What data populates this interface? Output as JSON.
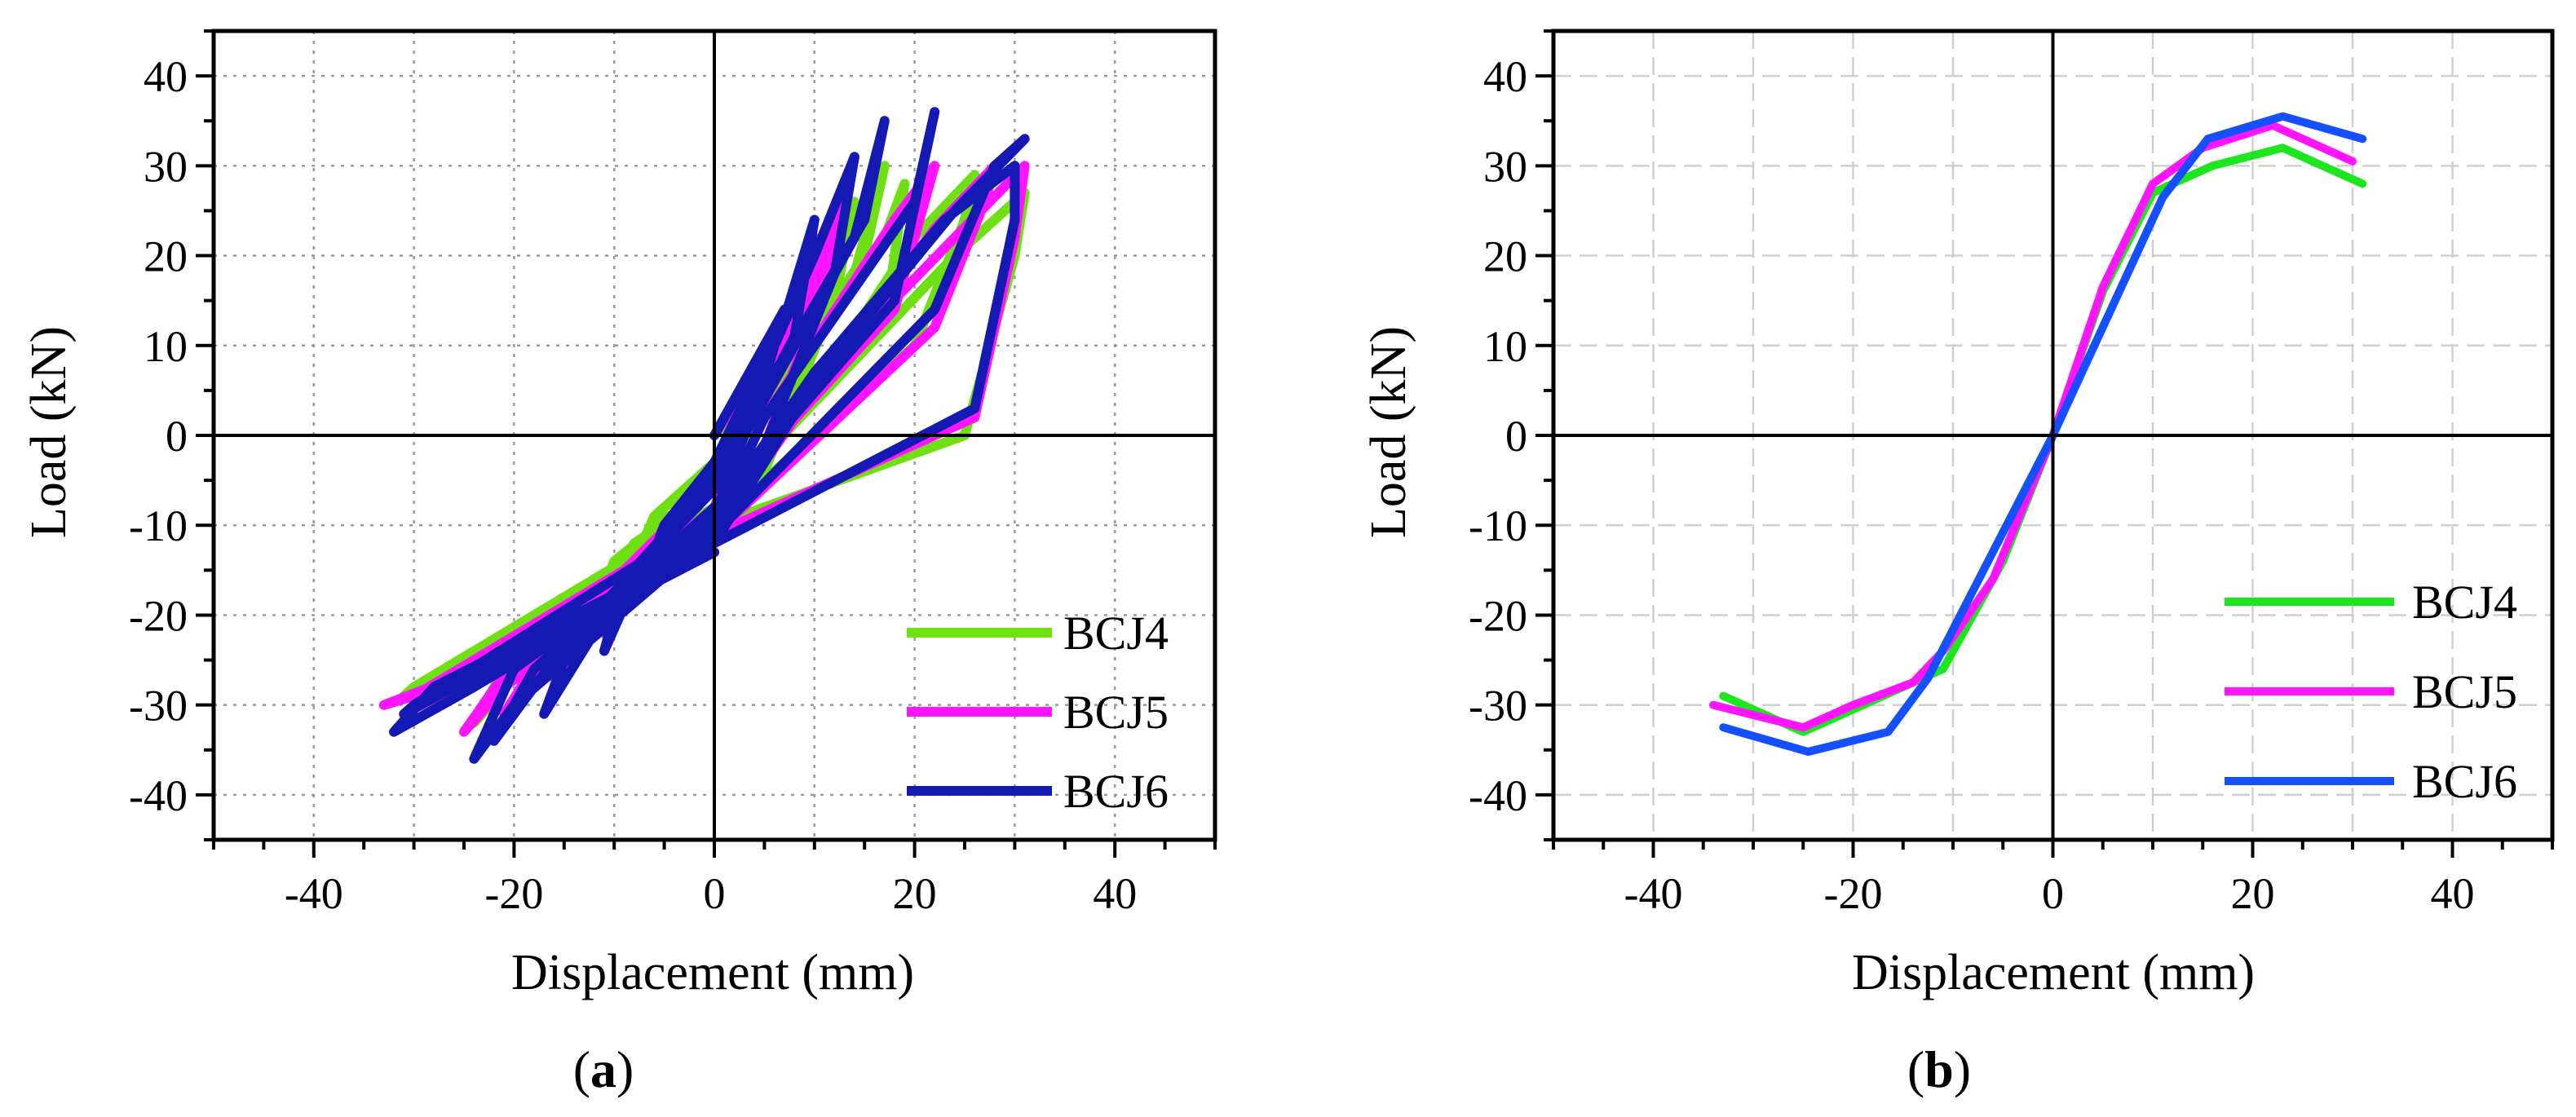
{
  "chart_data": [
    {
      "type": "line",
      "panel_label": "a",
      "xlabel": "Displacement (mm)",
      "ylabel": "Load (kN)",
      "xlim": [
        -50,
        50
      ],
      "ylim": [
        -45,
        45
      ],
      "xticks": [
        -40,
        -20,
        0,
        20,
        40
      ],
      "yticks": [
        40,
        30,
        20,
        10,
        0,
        -10,
        -20,
        -30,
        -40
      ],
      "grid": true,
      "legend": "bottom-right",
      "series": [
        {
          "name": "BCJ4",
          "color": "#6fe012",
          "x": [
            0,
            5,
            8,
            6,
            0,
            -5,
            -8,
            -6,
            0,
            8,
            11,
            9,
            0,
            -8,
            -12,
            -10,
            0,
            10,
            14,
            12,
            5,
            0,
            -12,
            -16,
            -13,
            0,
            14,
            17,
            15,
            5,
            0,
            -15,
            -20,
            -17,
            0,
            17,
            19,
            17,
            5,
            0,
            -20,
            -24,
            -20,
            0,
            20,
            25,
            26,
            20,
            10,
            0,
            -25,
            -28,
            -22,
            0,
            25,
            30,
            31,
            24,
            12,
            0,
            -30,
            -31,
            -25,
            0
          ],
          "y": [
            0,
            6,
            12,
            5,
            -4,
            -8,
            -14,
            -9,
            -3,
            10,
            18,
            8,
            -6,
            -12,
            -20,
            -14,
            -5,
            15,
            26,
            15,
            -4,
            -8,
            -18,
            -27,
            -20,
            -6,
            18,
            30,
            20,
            3,
            -8,
            -22,
            -30,
            -24,
            -8,
            12,
            28,
            22,
            2,
            -9,
            -24,
            -32,
            -27,
            -10,
            10,
            24,
            29,
            22,
            5,
            -10,
            -26,
            -30,
            -26,
            -10,
            0,
            20,
            27,
            20,
            6,
            -8,
            -28,
            -29,
            -26,
            -12
          ]
        },
        {
          "name": "BCJ5",
          "color": "#ff14ff",
          "x": [
            0,
            4,
            7,
            5,
            0,
            -4,
            -7,
            -5,
            0,
            7,
            10,
            8,
            0,
            -7,
            -11,
            -9,
            0,
            10,
            13,
            11,
            4,
            0,
            -12,
            -16,
            -13,
            0,
            12,
            14,
            12,
            4,
            0,
            -15,
            -21,
            -17,
            0,
            18,
            22,
            18,
            5,
            0,
            -20,
            -25,
            -21,
            0,
            22,
            27,
            28,
            22,
            10,
            0,
            -26,
            -31,
            -24,
            0,
            26,
            30,
            31,
            24,
            10,
            0,
            -30,
            -33,
            -26,
            0
          ],
          "y": [
            0,
            7,
            13,
            6,
            -4,
            -9,
            -15,
            -10,
            -3,
            12,
            22,
            10,
            -6,
            -13,
            -22,
            -15,
            -5,
            18,
            28,
            16,
            -4,
            -9,
            -20,
            -28,
            -20,
            -5,
            20,
            31,
            22,
            3,
            -8,
            -24,
            -31,
            -24,
            -8,
            14,
            30,
            24,
            2,
            -10,
            -25,
            -33,
            -28,
            -11,
            12,
            26,
            30,
            23,
            5,
            -11,
            -27,
            -31,
            -27,
            -11,
            2,
            22,
            30,
            22,
            6,
            -9,
            -29,
            -30,
            -27,
            -13
          ]
        },
        {
          "name": "BCJ6",
          "color": "#1419b4",
          "x": [
            0,
            4,
            7,
            5,
            0,
            -4,
            -7,
            -5,
            0,
            7,
            10,
            8,
            0,
            -7,
            -11,
            -9,
            0,
            10,
            14,
            12,
            4,
            0,
            -12,
            -17,
            -14,
            0,
            14,
            17,
            15,
            4,
            0,
            -16,
            -22,
            -18,
            0,
            18,
            22,
            20,
            5,
            0,
            -20,
            -24,
            -20,
            0,
            22,
            28,
            31,
            24,
            10,
            0,
            -28,
            -32,
            -24,
            0,
            26,
            30,
            30,
            23,
            10,
            0,
            -30,
            -31,
            -26,
            0
          ],
          "y": [
            0,
            8,
            14,
            6,
            -4,
            -9,
            -16,
            -10,
            -3,
            13,
            24,
            11,
            -6,
            -14,
            -24,
            -16,
            -5,
            20,
            31,
            18,
            -4,
            -10,
            -22,
            -31,
            -22,
            -6,
            22,
            35,
            24,
            3,
            -9,
            -25,
            -34,
            -26,
            -8,
            15,
            36,
            26,
            2,
            -10,
            -26,
            -36,
            -30,
            -11,
            14,
            30,
            33,
            25,
            6,
            -12,
            -28,
            -33,
            -28,
            -12,
            3,
            24,
            30,
            24,
            7,
            -9,
            -30,
            -31,
            -28,
            -13
          ]
        }
      ]
    },
    {
      "type": "line",
      "panel_label": "b",
      "xlabel": "Displacement (mm)",
      "ylabel": "Load (kN)",
      "xlim": [
        -50,
        50
      ],
      "ylim": [
        -45,
        45
      ],
      "xticks": [
        -40,
        -20,
        0,
        20,
        40
      ],
      "yticks": [
        40,
        30,
        20,
        10,
        0,
        -10,
        -20,
        -30,
        -40
      ],
      "grid": true,
      "legend": "bottom-right",
      "series": [
        {
          "name": "BCJ4",
          "color": "#1ee61e",
          "x": [
            -33,
            -25,
            -20,
            -15,
            -11,
            -5,
            0,
            5,
            10,
            16,
            23,
            31
          ],
          "y": [
            -29,
            -33,
            -30.5,
            -28,
            -26,
            -14,
            0,
            16,
            27,
            30,
            32,
            28
          ]
        },
        {
          "name": "BCJ5",
          "color": "#ff14ff",
          "x": [
            -34,
            -25,
            -20,
            -14,
            -11,
            -6,
            0,
            5,
            10,
            15,
            22,
            30
          ],
          "y": [
            -30,
            -32.5,
            -30,
            -27.5,
            -24,
            -16,
            0,
            16.5,
            28,
            32,
            34.5,
            30.5
          ]
        },
        {
          "name": "BCJ6",
          "color": "#1450ff",
          "x": [
            -33,
            -24.5,
            -16.5,
            -12.5,
            0,
            11,
            15.5,
            23,
            31
          ],
          "y": [
            -32.5,
            -35.2,
            -33,
            -27,
            0,
            26.5,
            33,
            35.5,
            33
          ]
        }
      ]
    }
  ]
}
